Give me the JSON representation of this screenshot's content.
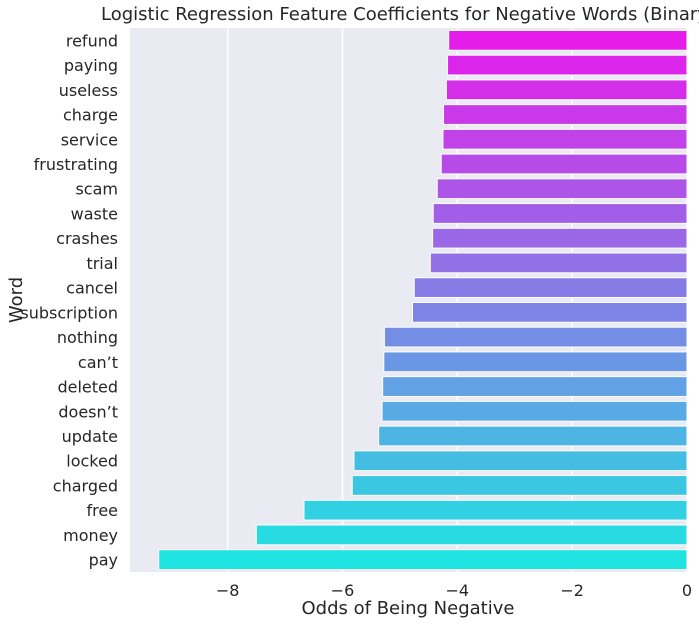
{
  "chart_data": {
    "type": "bar",
    "orientation": "horizontal",
    "title": "Logistic Regression Feature Coefficients for Negative Words (Binary)",
    "xlabel": "Odds of Being Negative",
    "ylabel": "Word",
    "categories": [
      "refund",
      "paying",
      "useless",
      "charge",
      "service",
      "frustrating",
      "scam",
      "waste",
      "crashes",
      "trial",
      "cancel",
      "subscription",
      "nothing",
      "can’t",
      "deleted",
      "doesn’t",
      "update",
      "locked",
      "charged",
      "free",
      "money",
      "pay"
    ],
    "values": [
      -4.15,
      -4.17,
      -4.19,
      -4.24,
      -4.25,
      -4.28,
      -4.35,
      -4.42,
      -4.43,
      -4.47,
      -4.75,
      -4.78,
      -5.27,
      -5.28,
      -5.3,
      -5.31,
      -5.37,
      -5.8,
      -5.83,
      -6.67,
      -7.5,
      -9.2
    ],
    "xlim": [
      -9.7,
      0
    ],
    "xticks": [
      -8,
      -6,
      -4,
      -2,
      0
    ],
    "xtick_labels": [
      "−8",
      "−6",
      "−4",
      "−2",
      "0"
    ],
    "grid": true,
    "background_color": "#eaeaf2",
    "colormap": "cool",
    "color_top": "#e61cea",
    "color_bottom": "#1ee3e1"
  }
}
